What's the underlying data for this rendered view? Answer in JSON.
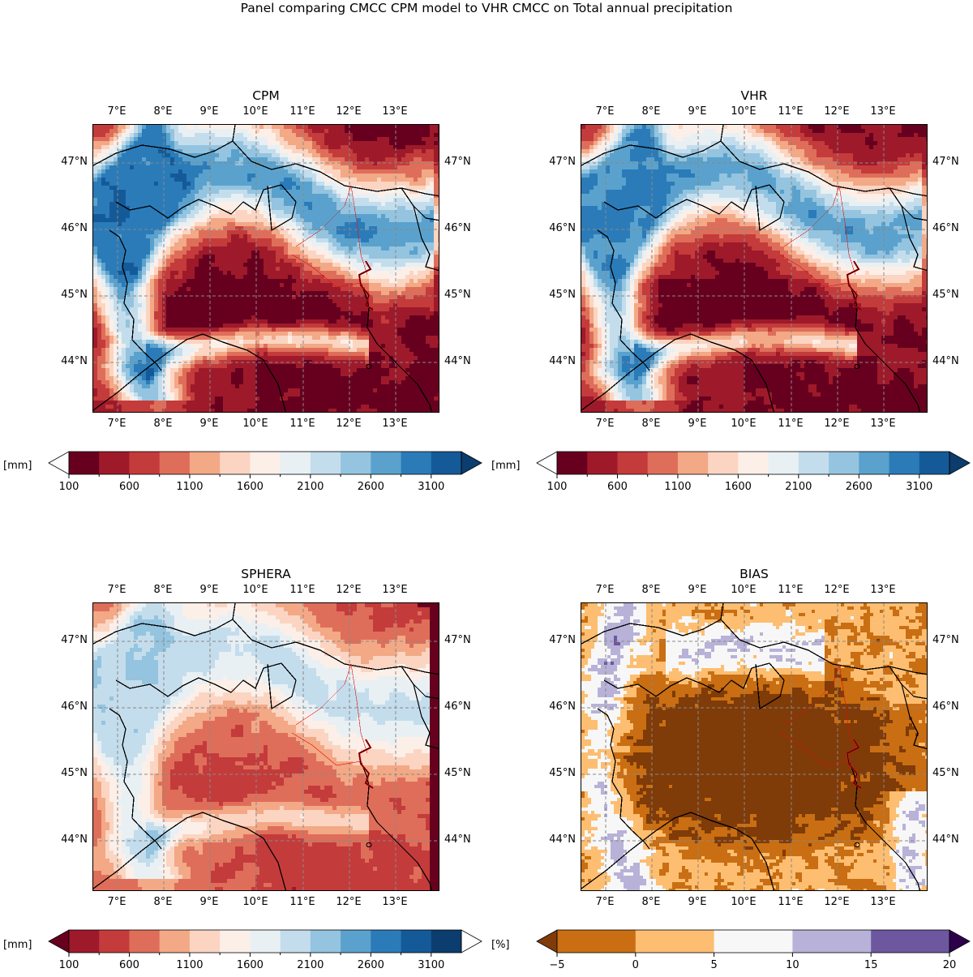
{
  "suptitle": "Panel comparing CMCC CPM model to VHR CMCC on Total annual precipitation",
  "panels": [
    {
      "id": "cpm",
      "title": "CPM",
      "scheme": "precip"
    },
    {
      "id": "vhr",
      "title": "VHR",
      "scheme": "precip"
    },
    {
      "id": "sphera",
      "title": "SPHERA",
      "scheme": "precip"
    },
    {
      "id": "bias",
      "title": "BIAS",
      "scheme": "bias"
    }
  ],
  "lon_labels": [
    "7°E",
    "8°E",
    "9°E",
    "10°E",
    "11°E",
    "12°E",
    "13°E"
  ],
  "lat_labels": [
    "47°N",
    "46°N",
    "45°N",
    "44°N"
  ],
  "colorbars": [
    {
      "id": "cb-cpm",
      "unit": "[mm]",
      "ticks": [
        "100",
        "600",
        "1100",
        "1600",
        "2100",
        "2600",
        "3100"
      ],
      "colors": [
        "#ffffff",
        "#67001f",
        "#9e1a2a",
        "#c43b3b",
        "#de6e5a",
        "#f3a886",
        "#fbd5c2",
        "#fcefe8",
        "#e8f0f4",
        "#c4ddec",
        "#94c4df",
        "#5aa2cd",
        "#2b7bb9",
        "#155a98",
        "#0b3d6e"
      ]
    },
    {
      "id": "cb-vhr",
      "unit": "[mm]",
      "ticks": [
        "100",
        "600",
        "1100",
        "1600",
        "2100",
        "2600",
        "3100"
      ],
      "colors": [
        "#ffffff",
        "#67001f",
        "#9e1a2a",
        "#c43b3b",
        "#de6e5a",
        "#f3a886",
        "#fbd5c2",
        "#fcefe8",
        "#e8f0f4",
        "#c4ddec",
        "#94c4df",
        "#5aa2cd",
        "#2b7bb9",
        "#155a98",
        "#0b3d6e"
      ]
    },
    {
      "id": "cb-sphera",
      "unit": "[mm]",
      "ticks": [
        "100",
        "600",
        "1100",
        "1600",
        "2100",
        "2600",
        "3100"
      ],
      "colors": [
        "#67001f",
        "#9e1a2a",
        "#c43b3b",
        "#de6e5a",
        "#f3a886",
        "#fbd5c2",
        "#fcefe8",
        "#e8f0f4",
        "#c4ddec",
        "#94c4df",
        "#5aa2cd",
        "#2b7bb9",
        "#155a98",
        "#0b3d6e",
        "#ffffff"
      ]
    },
    {
      "id": "cb-bias",
      "unit": "[%]",
      "ticks": [
        "−5",
        "0",
        "5",
        "10",
        "15",
        "20"
      ],
      "colors": [
        "#7f3b08",
        "#c96e12",
        "#fdbe71",
        "#f7f7f7",
        "#b8b2d8",
        "#6d579f",
        "#2d004b"
      ]
    }
  ]
}
